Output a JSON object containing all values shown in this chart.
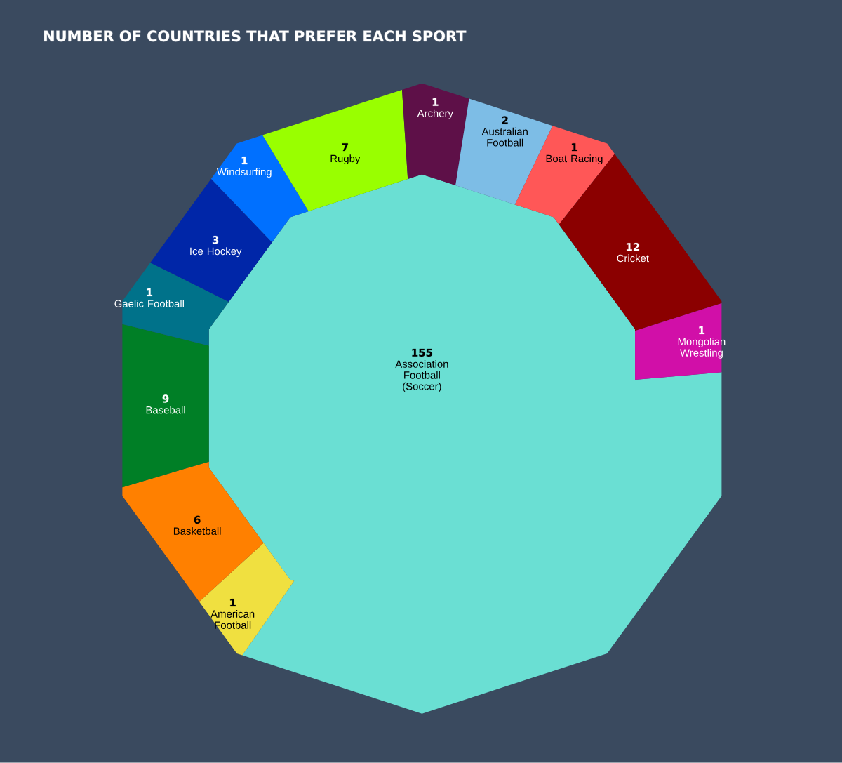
{
  "chart_data": {
    "type": "other",
    "title": "NUMBER OF COUNTRIES THAT PREFER EACH SPORT",
    "categories": [
      "Association Football (Soccer)",
      "American Football",
      "Basketball",
      "Baseball",
      "Gaelic Football",
      "Ice Hockey",
      "Windsurfing",
      "Rugby",
      "Archery",
      "Australian Football",
      "Boat Racing",
      "Cricket",
      "Mongolian Wrestling"
    ],
    "values": [
      155,
      1,
      6,
      9,
      1,
      3,
      1,
      7,
      1,
      2,
      1,
      12,
      1
    ],
    "colors": [
      "#6adfd3",
      "#f0e040",
      "#ff8000",
      "#007f26",
      "#00728a",
      "#0026a8",
      "#0070ff",
      "#99ff00",
      "#5e1048",
      "#7dbde6",
      "#ff5757",
      "#8b0000",
      "#d10fa8"
    ],
    "data_labels": true
  }
}
